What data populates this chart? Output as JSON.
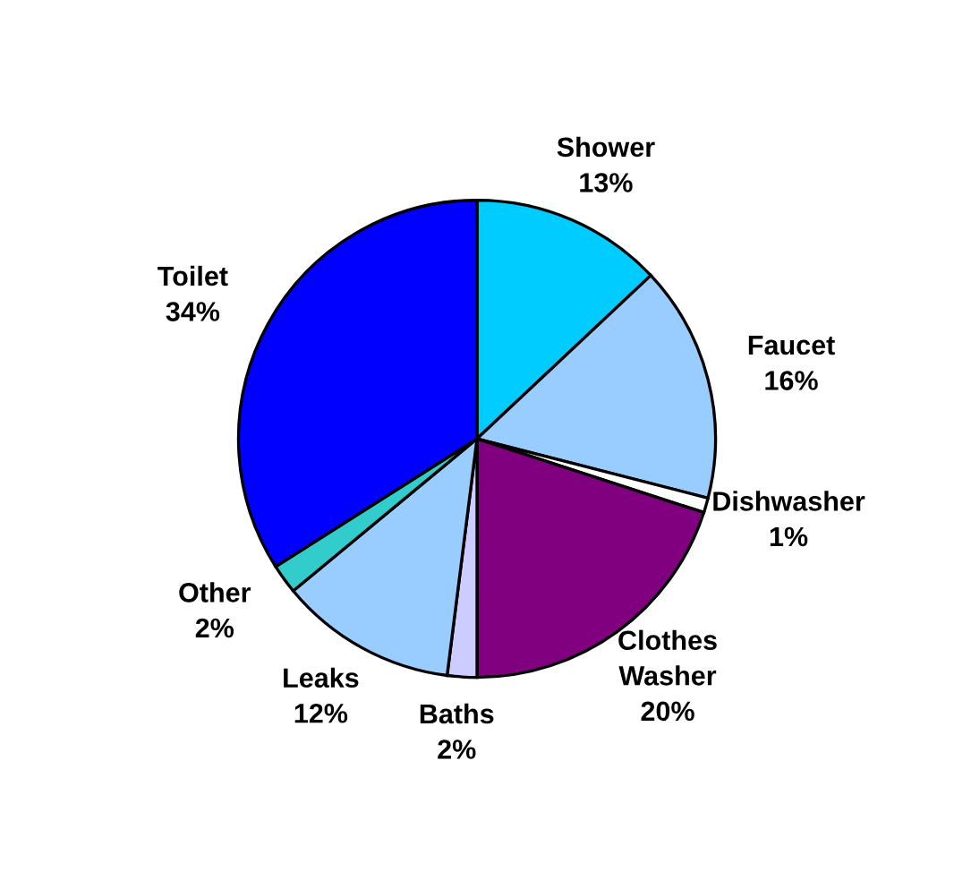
{
  "chart_data": {
    "type": "pie",
    "categories": [
      "Shower",
      "Faucet",
      "Dishwasher",
      "Clothes\nWasher",
      "Baths",
      "Leaks",
      "Other",
      "Toilet"
    ],
    "values": [
      13,
      16,
      1,
      20,
      2,
      12,
      2,
      34
    ],
    "value_labels": [
      "13%",
      "16%",
      "1%",
      "20%",
      "2%",
      "12%",
      "2%",
      "34%"
    ],
    "colors": [
      "#00ccff",
      "#99ccff",
      "#ffffff",
      "#800080",
      "#ccccff",
      "#99ccff",
      "#33cccc",
      "#0000ff"
    ]
  }
}
